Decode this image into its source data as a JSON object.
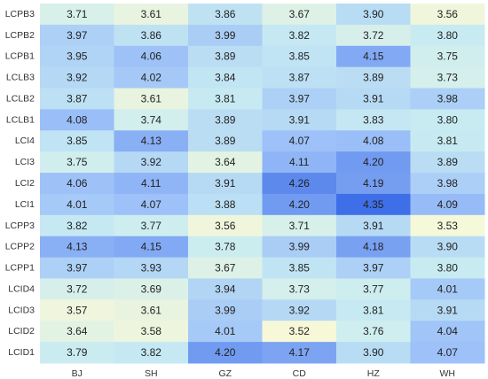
{
  "chart_data": {
    "type": "heatmap",
    "title": "",
    "xlabel": "",
    "ylabel": "",
    "columns": [
      "BJ",
      "SH",
      "GZ",
      "CD",
      "HZ",
      "WH"
    ],
    "rows": [
      "LCPB3",
      "LCPB2",
      "LCPB1",
      "LCLB3",
      "LCLB2",
      "LCLB1",
      "LCI4",
      "LCI3",
      "LCI2",
      "LCI1",
      "LCPP3",
      "LCPP2",
      "LCPP1",
      "LCID4",
      "LCID3",
      "LCID2",
      "LCID1"
    ],
    "values": [
      [
        3.71,
        3.61,
        3.86,
        3.67,
        3.9,
        3.56
      ],
      [
        3.97,
        3.86,
        3.99,
        3.82,
        3.72,
        3.8
      ],
      [
        3.95,
        4.06,
        3.89,
        3.85,
        4.15,
        3.75
      ],
      [
        3.92,
        4.02,
        3.84,
        3.87,
        3.89,
        3.73
      ],
      [
        3.87,
        3.61,
        3.81,
        3.97,
        3.91,
        3.98
      ],
      [
        4.08,
        3.74,
        3.89,
        3.91,
        3.83,
        3.8
      ],
      [
        3.85,
        4.13,
        3.89,
        4.07,
        4.08,
        3.81
      ],
      [
        3.75,
        3.92,
        3.64,
        4.11,
        4.2,
        3.89
      ],
      [
        4.06,
        4.11,
        3.91,
        4.26,
        4.19,
        3.98
      ],
      [
        4.01,
        4.07,
        3.88,
        4.2,
        4.35,
        4.09
      ],
      [
        3.82,
        3.77,
        3.56,
        3.71,
        3.91,
        3.53
      ],
      [
        4.13,
        4.15,
        3.78,
        3.99,
        4.18,
        3.9
      ],
      [
        3.97,
        3.93,
        3.67,
        3.85,
        3.97,
        3.8
      ],
      [
        3.72,
        3.69,
        3.94,
        3.73,
        3.77,
        4.01
      ],
      [
        3.57,
        3.61,
        3.99,
        3.92,
        3.81,
        3.91
      ],
      [
        3.64,
        3.58,
        4.01,
        3.52,
        3.76,
        4.04
      ],
      [
        3.79,
        3.82,
        4.2,
        4.17,
        3.9,
        4.07
      ]
    ],
    "value_range": [
      3.52,
      4.35
    ],
    "color_scale": [
      "#f7f8d8",
      "#c9ecf2",
      "#9cc0f8",
      "#3f6fe8"
    ],
    "text_color": "#222222",
    "grid": false,
    "legend": "none"
  }
}
